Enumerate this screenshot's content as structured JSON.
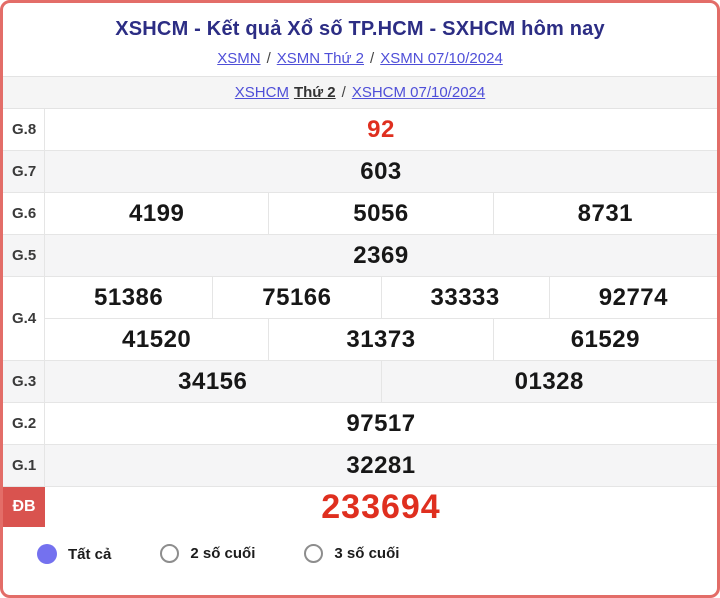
{
  "header": {
    "title": "XSHCM - Kết quả Xổ số TP.HCM - SXHCM hôm nay",
    "breadcrumb1": {
      "items": [
        "XSMN",
        "XSMN Thứ 2",
        "XSMN 07/10/2024"
      ],
      "separator": "/"
    },
    "breadcrumb2": {
      "link1": "XSHCM",
      "static": "Thứ 2",
      "separator": "/",
      "link2": "XSHCM 07/10/2024"
    }
  },
  "table": {
    "rows": [
      {
        "label": "G.8",
        "cells": [
          "92"
        ]
      },
      {
        "label": "G.7",
        "cells": [
          "603"
        ]
      },
      {
        "label": "G.6",
        "cells": [
          "4199",
          "5056",
          "8731"
        ]
      },
      {
        "label": "G.5",
        "cells": [
          "2369"
        ]
      },
      {
        "label": "G.4",
        "cells_row1": [
          "51386",
          "75166",
          "33333",
          "92774"
        ],
        "cells_row2": [
          "41520",
          "31373",
          "61529"
        ]
      },
      {
        "label": "G.3",
        "cells": [
          "34156",
          "01328"
        ]
      },
      {
        "label": "G.2",
        "cells": [
          "97517"
        ]
      },
      {
        "label": "G.1",
        "cells": [
          "32281"
        ]
      },
      {
        "label": "ĐB",
        "cells": [
          "233694"
        ]
      }
    ]
  },
  "filters": {
    "options": [
      {
        "label": "Tất cả",
        "selected": true
      },
      {
        "label": "2 số cuối",
        "selected": false
      },
      {
        "label": "3 số cuối",
        "selected": false
      }
    ]
  },
  "colors": {
    "card_border": "#e36d68",
    "title_navy": "#2c2d84",
    "link_blue": "#4f4fd8",
    "number_red": "#df2f1f",
    "db_label_bg": "#d9534f",
    "radio_selected": "#7471ef",
    "row_shade": "#f5f5f6"
  }
}
